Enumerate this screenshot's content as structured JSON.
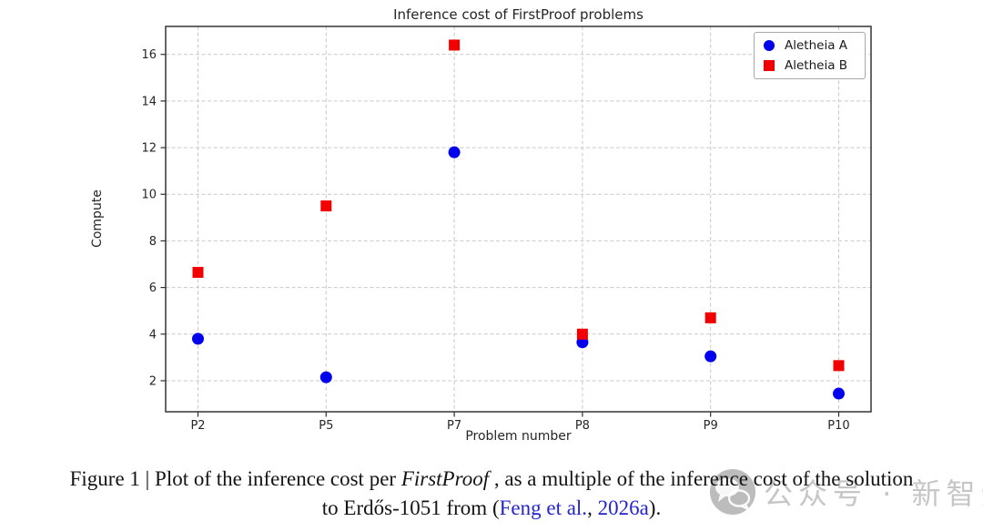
{
  "chart_data": {
    "type": "scatter",
    "title": "Inference cost of FirstProof problems",
    "xlabel": "Problem number",
    "ylabel": "Compute",
    "categories": [
      "P2",
      "P5",
      "P7",
      "P8",
      "P9",
      "P10"
    ],
    "series": [
      {
        "name": "Aletheia A",
        "marker": "circle",
        "color": "#0000ee",
        "values": [
          3.8,
          2.15,
          11.8,
          3.65,
          3.05,
          1.45
        ]
      },
      {
        "name": "Aletheia B",
        "marker": "square",
        "color": "#f20000",
        "values": [
          6.65,
          9.5,
          16.4,
          4.0,
          4.7,
          2.65
        ]
      }
    ],
    "ylim": [
      0.67,
      17.2
    ],
    "yticks": [
      2,
      4,
      6,
      8,
      10,
      12,
      14,
      16
    ],
    "grid": true,
    "grid_style": "dashed",
    "legend_position": "top-right"
  },
  "caption": {
    "line1_prefix": "Figure 1 | Plot of the inference cost per ",
    "line1_italic": "FirstProof",
    "line1_suffix": " , as a multiple of the inference cost of the solution",
    "line2_prefix": "to Erdős-1051 from (",
    "cite_authors": "Feng et al.",
    "cite_separator": ", ",
    "cite_year": "2026a",
    "line2_suffix": ").",
    "link_color": "#2424cc"
  },
  "watermark": {
    "icon": "chat-bubbles-logo",
    "text": "公众号 · 新智元"
  }
}
